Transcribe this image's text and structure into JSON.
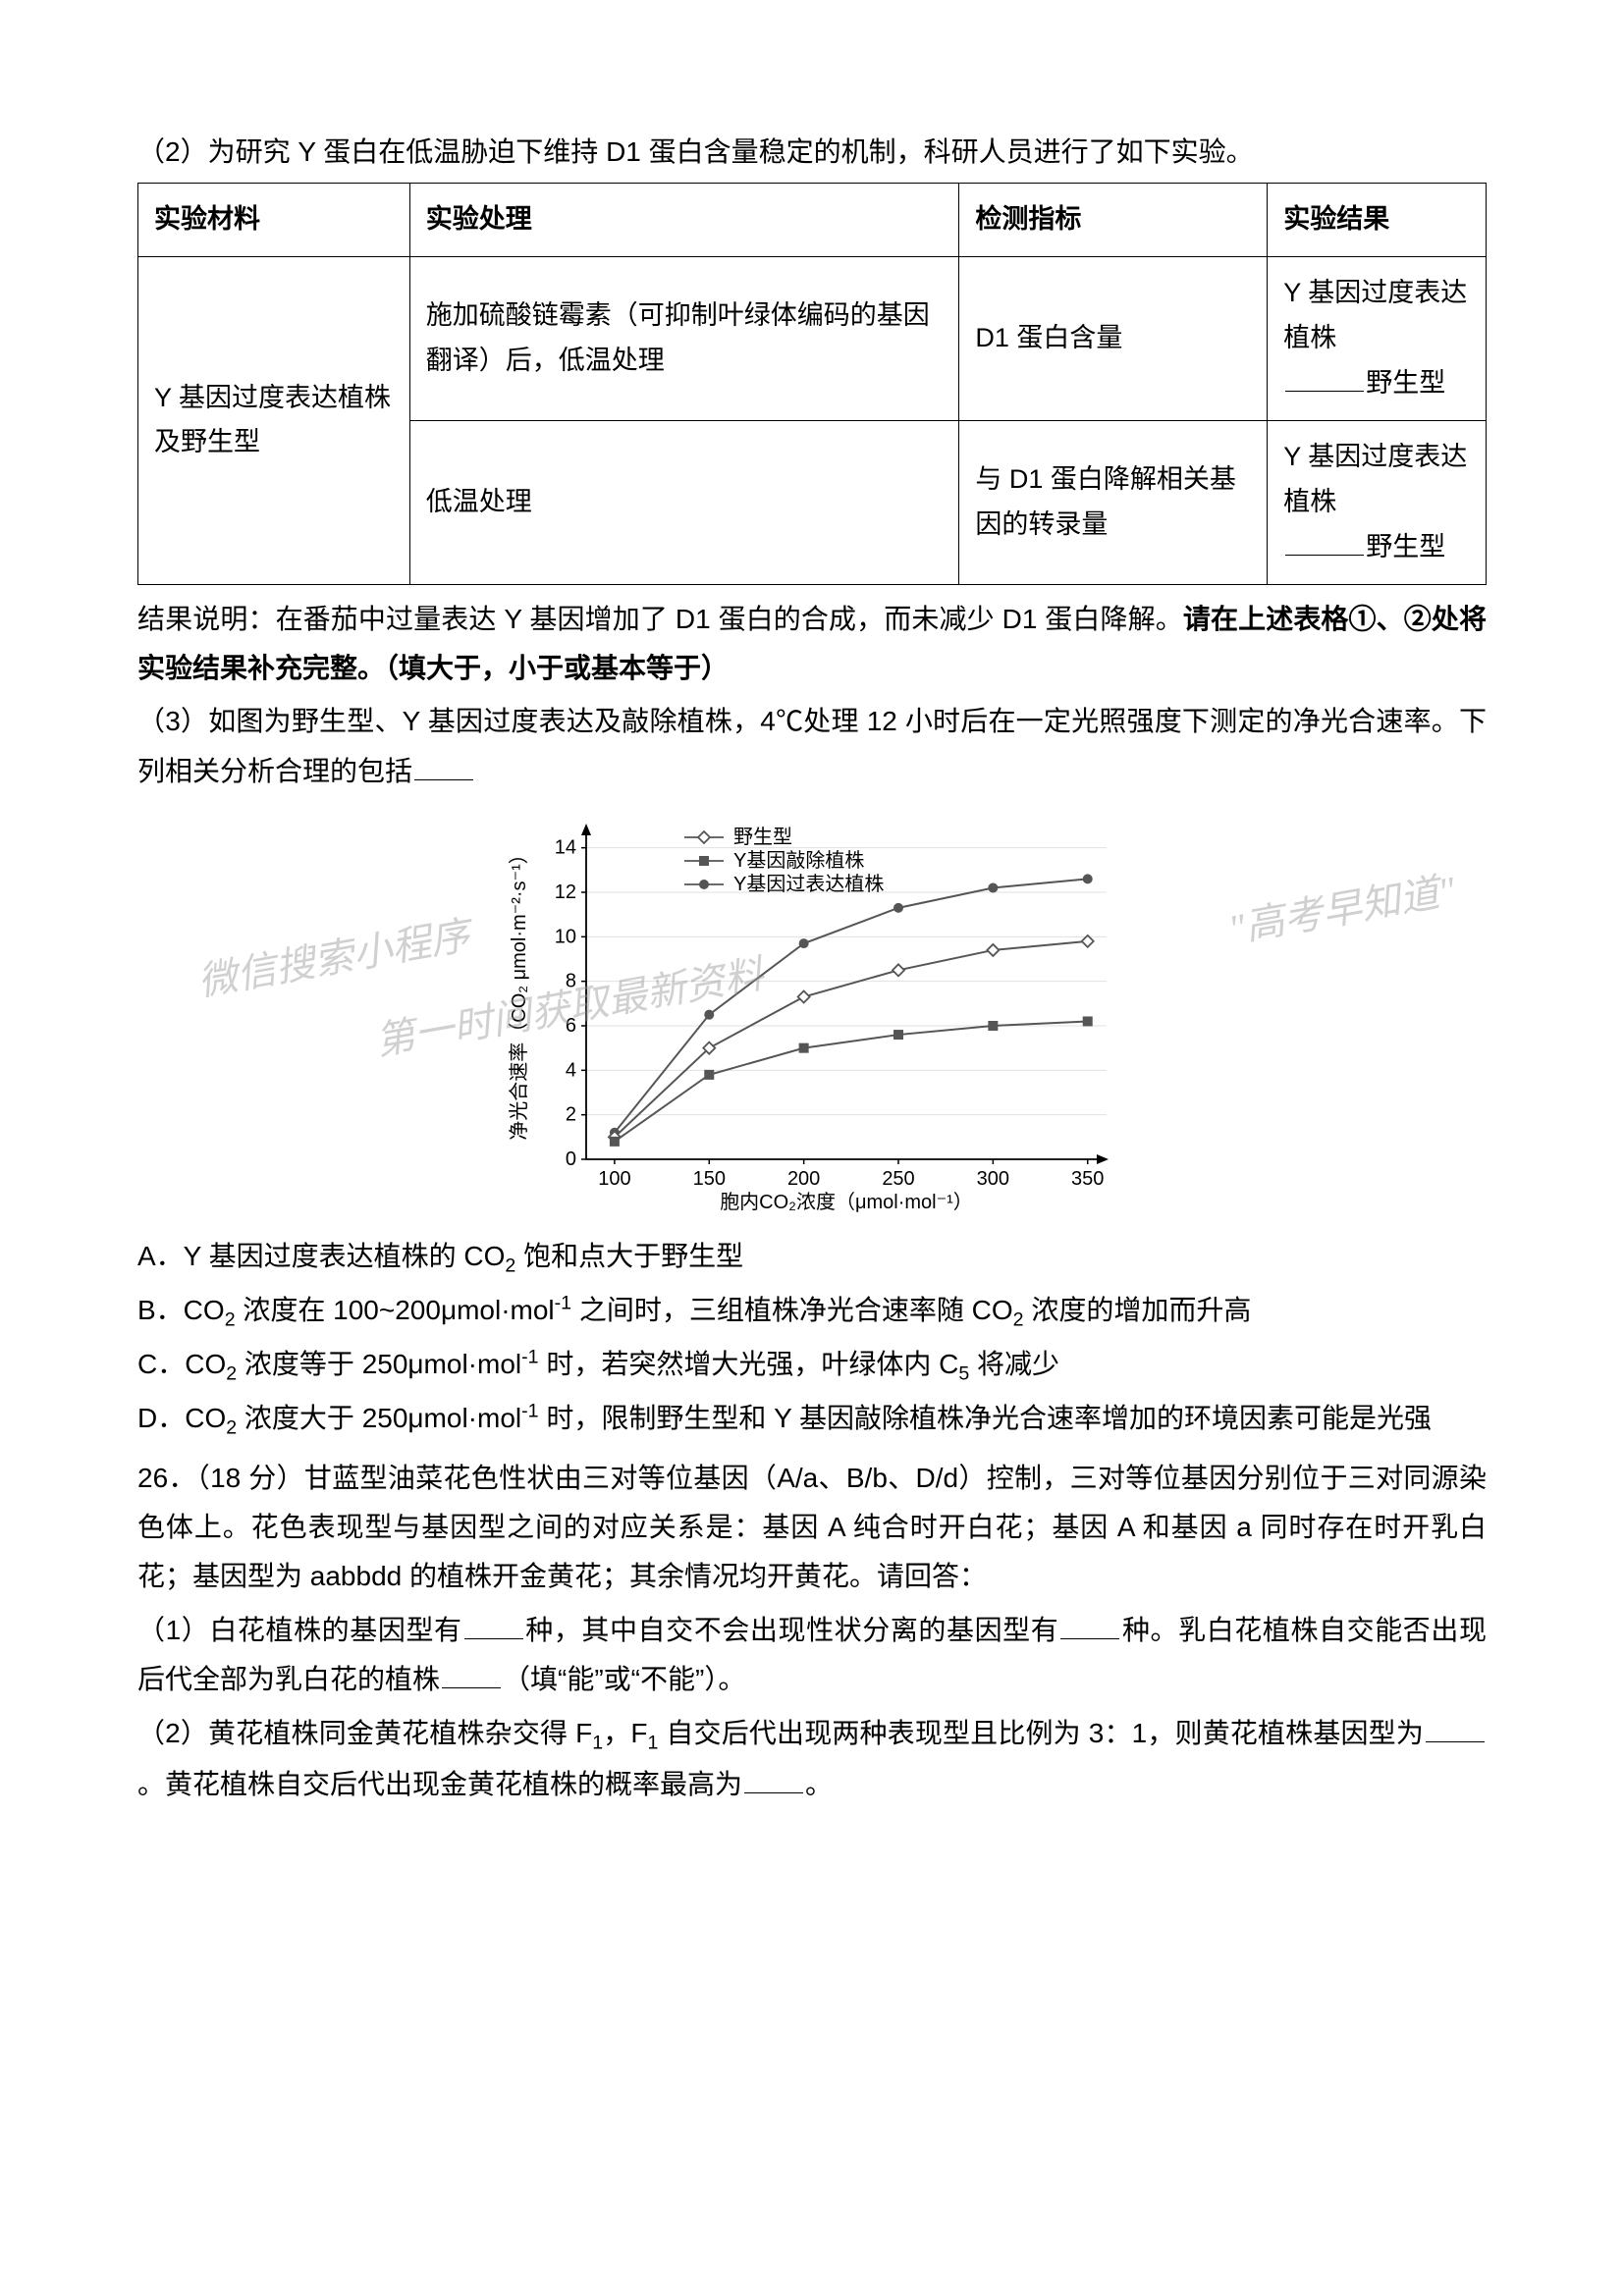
{
  "q2_intro": "（2）为研究 Y 蛋白在低温胁迫下维持 D1 蛋白含量稳定的机制，科研人员进行了如下实验。",
  "table": {
    "headers": [
      "实验材料",
      "实验处理",
      "检测指标",
      "实验结果"
    ],
    "material": "Y 基因过度表达植株及野生型",
    "row1": {
      "treatment": "施加硫酸链霉素（可抑制叶绿体编码的基因翻译）后，低温处理",
      "indicator": "D1 蛋白含量",
      "result_prefix": "Y 基因过度表达植株",
      "result_suffix": "野生型"
    },
    "row2": {
      "treatment": "低温处理",
      "indicator": "与 D1 蛋白降解相关基因的转录量",
      "result_prefix": "Y 基因过度表达植株",
      "result_suffix": "野生型"
    }
  },
  "after_table_1": "结果说明：在番茄中过量表达 Y 基因增加了 D1 蛋白的合成，而未减少 D1 蛋白降解。",
  "after_table_bold": "请在上述表格①、②处将实验结果补充完整。（填大于，小于或基本等于）",
  "q3_intro_a": "（3）如图为野生型、Y 基因过度表达及敲除植株，4℃处理 12 小时后在一定光照强度下测定的净光合速率。下列相关分析合理的包括",
  "chart": {
    "type": "line",
    "legend": [
      "野生型",
      "Y基因敲除植株",
      "Y基因过表达植株"
    ],
    "markers": [
      "diamond-open",
      "square-filled",
      "circle-filled"
    ],
    "xlabel": "胞内CO₂浓度（μmol·mol⁻¹）",
    "ylabel": "净光合速率（CO₂ μmol·m⁻²·s⁻¹）",
    "xticks": [
      100,
      150,
      200,
      250,
      300,
      350
    ],
    "yticks": [
      0,
      2,
      4,
      6,
      8,
      10,
      12,
      14
    ],
    "xlim": [
      85,
      360
    ],
    "ylim": [
      0,
      15
    ],
    "series": {
      "wild": {
        "x": [
          100,
          150,
          200,
          250,
          300,
          350
        ],
        "y": [
          1.0,
          5.0,
          7.3,
          8.5,
          9.4,
          9.8
        ],
        "color": "#555555"
      },
      "knockout": {
        "x": [
          100,
          150,
          200,
          250,
          300,
          350
        ],
        "y": [
          0.8,
          3.8,
          5.0,
          5.6,
          6.0,
          6.2
        ],
        "color": "#555555"
      },
      "over": {
        "x": [
          100,
          150,
          200,
          250,
          300,
          350
        ],
        "y": [
          1.2,
          6.5,
          9.7,
          11.3,
          12.2,
          12.6
        ],
        "color": "#555555"
      }
    },
    "grid_color": "#e0e0e0",
    "axis_color": "#000000",
    "background": "#ffffff",
    "line_width": 2,
    "axis_fontsize": 20,
    "legend_fontsize": 20
  },
  "options": {
    "A": "A．Y 基因过度表达植株的 CO₂ 饱和点大于野生型",
    "B": "B．CO₂ 浓度在 100~200μmol·mol⁻¹ 之间时，三组植株净光合速率随 CO₂ 浓度的增加而升高",
    "C": "C．CO₂ 浓度等于 250μmol·mol⁻¹ 时，若突然增大光强，叶绿体内 C₅ 将减少",
    "D": "D．CO₂ 浓度大于 250μmol·mol⁻¹ 时，限制野生型和 Y 基因敲除植株净光合速率增加的环境因素可能是光强"
  },
  "q26_intro": "26．（18 分）甘蓝型油菜花色性状由三对等位基因（A/a、B/b、D/d）控制，三对等位基因分别位于三对同源染色体上。花色表现型与基因型之间的对应关系是：基因 A 纯合时开白花；基因 A 和基因 a 同时存在时开乳白花；基因型为 aabbdd 的植株开金黄花；其余情况均开黄花。请回答：",
  "q26_1_a": "（1）白花植株的基因型有",
  "q26_1_b": "种，其中自交不会出现性状分离的基因型有",
  "q26_1_c": "种。乳白花植株自交能否出现后代全部为乳白花的植株",
  "q26_1_d": "（填“能”或“不能”）。",
  "q26_2_a": "（2）黄花植株同金黄花植株杂交得 F₁，F₁ 自交后代出现两种表现型且比例为 3：1，则黄花植株基因型为",
  "q26_2_b": "。黄花植株自交后代出现金黄花植株的概率最高为",
  "q26_2_c": "。",
  "watermarks": {
    "wm1": "微信搜索小程序",
    "wm2": "\"高考早知道\"",
    "wm3": "第一时间获取最新资料"
  }
}
